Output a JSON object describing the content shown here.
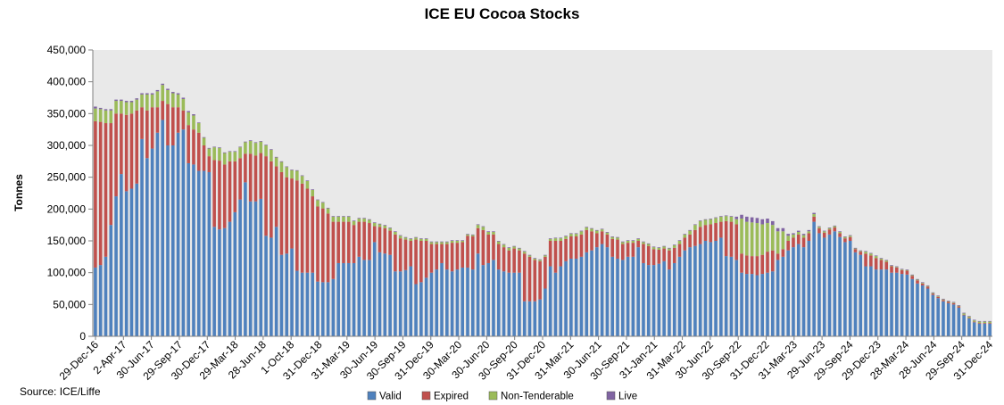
{
  "chart_data": {
    "type": "bar",
    "stacked": true,
    "title": "ICE EU Cocoa Stocks",
    "ylabel": "Tonnes",
    "xlabel": "",
    "ylim": [
      0,
      450000
    ],
    "y_ticks": [
      "0",
      "50,000",
      "100,000",
      "150,000",
      "200,000",
      "250,000",
      "300,000",
      "350,000",
      "400,000",
      "450,000"
    ],
    "x_tick_labels": [
      "29-Dec-16",
      "2-Apr-17",
      "30-Jun-17",
      "29-Sep-17",
      "30-Dec-17",
      "29-Mar-18",
      "28-Jun-18",
      "1-Oct-18",
      "31-Dec-18",
      "31-Mar-19",
      "30-Jun-19",
      "30-Sep-19",
      "31-Dec-19",
      "30-Mar-20",
      "30-Jun-20",
      "30-Sep-20",
      "31-Dec-20",
      "31-Mar-21",
      "30-Jun-21",
      "30-Sep-21",
      "31-Jan-21",
      "31-Mar-22",
      "30-Jun-22",
      "30-Sep-22",
      "31-Dec-22",
      "31-Mar-23",
      "29-Jun-23",
      "29-Sep-24",
      "29-Dec-23",
      "28-Mar-24",
      "28-Jun-24",
      "29-Sep-24",
      "31-Dec-24"
    ],
    "legend": [
      "Valid",
      "Expired",
      "Non-Tenderable",
      "Live"
    ],
    "legend_position": "bottom",
    "grid": false,
    "colors": {
      "Valid": "#4F81BD",
      "Expired": "#C0504D",
      "Non-Tenderable": "#9BBB59",
      "Live": "#8064A2",
      "background": "#E9E9E9",
      "axis": "#808080"
    },
    "series": [
      {
        "name": "Valid",
        "values": [
          108000,
          112000,
          125000,
          175000,
          220000,
          255000,
          228000,
          232000,
          240000,
          310000,
          280000,
          295000,
          320000,
          340000,
          300000,
          300000,
          320000,
          325000,
          272000,
          270000,
          260000,
          260000,
          258000,
          172000,
          168000,
          170000,
          180000,
          195000,
          215000,
          242000,
          212000,
          212000,
          216000,
          158000,
          155000,
          172000,
          128000,
          130000,
          138000,
          103000,
          100000,
          100000,
          100000,
          86000,
          85000,
          85000,
          90000,
          115000,
          115000,
          115000,
          115000,
          125000,
          120000,
          120000,
          148000,
          132000,
          130000,
          128000,
          102000,
          102000,
          104000,
          110000,
          82000,
          85000,
          92000,
          100000,
          105000,
          115000,
          105000,
          102000,
          105000,
          108000,
          108000,
          105000,
          130000,
          112000,
          115000,
          120000,
          105000,
          102000,
          100000,
          100000,
          100000,
          55000,
          55000,
          55000,
          58000,
          75000,
          110000,
          100000,
          110000,
          118000,
          122000,
          122000,
          125000,
          132000,
          135000,
          140000,
          145000,
          140000,
          125000,
          122000,
          120000,
          125000,
          125000,
          140000,
          115000,
          112000,
          112000,
          114000,
          118000,
          105000,
          115000,
          125000,
          135000,
          140000,
          142000,
          145000,
          150000,
          148000,
          150000,
          155000,
          126000,
          125000,
          120000,
          100000,
          98000,
          98000,
          96000,
          98000,
          100000,
          102000,
          120000,
          125000,
          135000,
          140000,
          145000,
          140000,
          150000,
          180000,
          162000,
          155000,
          160000,
          165000,
          156000,
          148000,
          150000,
          132000,
          128000,
          110000,
          110000,
          105000,
          105000,
          105000,
          100000,
          100000,
          98000,
          97000,
          90000,
          83000,
          80000,
          75000,
          65000,
          60000,
          55000,
          52000,
          50000,
          45000,
          33000,
          28000,
          22000,
          20000,
          20000,
          20000
        ]
      },
      {
        "name": "Expired",
        "values": [
          230000,
          225000,
          210000,
          160000,
          130000,
          95000,
          120000,
          118000,
          115000,
          50000,
          75000,
          65000,
          40000,
          30000,
          65000,
          60000,
          40000,
          30000,
          60000,
          55000,
          60000,
          40000,
          25000,
          105000,
          108000,
          100000,
          95000,
          80000,
          65000,
          45000,
          75000,
          72000,
          72000,
          125000,
          120000,
          95000,
          130000,
          120000,
          110000,
          142000,
          140000,
          132000,
          120000,
          118000,
          116000,
          108000,
          90000,
          65000,
          65000,
          65000,
          60000,
          55000,
          60000,
          58000,
          25000,
          40000,
          40000,
          38000,
          58000,
          52000,
          48000,
          40000,
          70000,
          65000,
          58000,
          45000,
          40000,
          30000,
          40000,
          45000,
          42000,
          40000,
          50000,
          52000,
          40000,
          55000,
          45000,
          40000,
          40000,
          38000,
          35000,
          38000,
          35000,
          75000,
          70000,
          65000,
          60000,
          50000,
          40000,
          50000,
          40000,
          35000,
          35000,
          35000,
          35000,
          35000,
          30000,
          22000,
          20000,
          20000,
          28000,
          30000,
          25000,
          22000,
          22000,
          10000,
          30000,
          30000,
          25000,
          22000,
          20000,
          30000,
          24000,
          20000,
          20000,
          20000,
          25000,
          27000,
          25000,
          28000,
          28000,
          25000,
          55000,
          55000,
          56000,
          30000,
          29000,
          28000,
          30000,
          30000,
          33000,
          33000,
          10000,
          12000,
          15000,
          15000,
          15000,
          15000,
          12000,
          8000,
          8000,
          8000,
          8000,
          6000,
          6000,
          6000,
          6000,
          5000,
          5000,
          20000,
          17000,
          18000,
          15000,
          12000,
          10000,
          8000,
          6000,
          6000,
          5000,
          5000,
          3000,
          3000,
          2000,
          2000,
          2000,
          2000,
          2000,
          2000,
          1000,
          1000,
          1000,
          1000,
          1000,
          1000
        ]
      },
      {
        "name": "Non-Tenderable",
        "values": [
          20000,
          20000,
          20000,
          20000,
          20000,
          20000,
          20000,
          18000,
          17000,
          20000,
          25000,
          20000,
          25000,
          25000,
          22000,
          22000,
          20000,
          18000,
          20000,
          22000,
          15000,
          12000,
          12000,
          20000,
          20000,
          18000,
          15000,
          15000,
          17000,
          18000,
          20000,
          20000,
          18000,
          17000,
          18000,
          14000,
          16000,
          16000,
          13000,
          15000,
          12000,
          12000,
          10000,
          10000,
          9000,
          8000,
          8000,
          8000,
          8000,
          8000,
          6000,
          5000,
          5000,
          5000,
          5000,
          4000,
          4000,
          4000,
          4000,
          4000,
          3000,
          3000,
          3000,
          3000,
          3000,
          3000,
          3000,
          3000,
          3000,
          3000,
          3000,
          2000,
          2000,
          2000,
          5000,
          5000,
          4000,
          4000,
          4000,
          4000,
          4000,
          3000,
          3000,
          3000,
          2000,
          2000,
          2000,
          2000,
          3000,
          4000,
          4000,
          4000,
          4000,
          4000,
          5000,
          4000,
          4000,
          4000,
          3000,
          3000,
          3000,
          3000,
          3000,
          3000,
          3000,
          3000,
          3000,
          3000,
          3000,
          3000,
          3000,
          3000,
          4000,
          5000,
          5000,
          6000,
          8000,
          9000,
          8000,
          8000,
          8000,
          8000,
          8000,
          8000,
          8000,
          55000,
          53000,
          53000,
          52000,
          48000,
          45000,
          40000,
          35000,
          28000,
          8000,
          5000,
          4000,
          4000,
          3000,
          4000,
          2000,
          2000,
          2000,
          2000,
          2000,
          2000,
          2000,
          1000,
          1000,
          3000,
          3000,
          3000,
          2000,
          2000,
          1000,
          1000,
          1000,
          1000,
          1000,
          1000,
          1000,
          1000,
          1000,
          1000,
          1000,
          1000,
          1000,
          1000,
          2000,
          2000,
          2000,
          2000,
          2000,
          2000
        ]
      },
      {
        "name": "Live",
        "values": [
          3000,
          2000,
          2000,
          2000,
          2000,
          2000,
          2000,
          2000,
          2000,
          2000,
          2000,
          2000,
          2000,
          2000,
          2000,
          2000,
          2000,
          2000,
          2000,
          2000,
          1000,
          1000,
          1000,
          1000,
          1000,
          1000,
          1000,
          1000,
          1000,
          1000,
          1000,
          1000,
          1000,
          1000,
          1000,
          1000,
          1000,
          1000,
          1000,
          1000,
          1000,
          1000,
          1000,
          1000,
          1000,
          1000,
          1000,
          1000,
          1000,
          1000,
          1000,
          1000,
          1000,
          1000,
          1000,
          1000,
          1000,
          1000,
          1000,
          1000,
          1000,
          1000,
          1000,
          1000,
          1000,
          1000,
          1000,
          1000,
          1000,
          1000,
          1000,
          1000,
          1000,
          1000,
          1000,
          1000,
          1000,
          1000,
          1000,
          1000,
          1000,
          1000,
          1000,
          1000,
          1000,
          1000,
          1000,
          1000,
          1000,
          1000,
          1000,
          1000,
          1000,
          1000,
          1000,
          1000,
          1000,
          1000,
          1000,
          1000,
          1000,
          1000,
          1000,
          1000,
          1000,
          1000,
          1000,
          1000,
          1000,
          1000,
          1000,
          1000,
          1000,
          1000,
          1000,
          1000,
          1000,
          1000,
          1000,
          1000,
          1000,
          1000,
          1000,
          1000,
          4000,
          6000,
          8000,
          8000,
          8000,
          8000,
          7000,
          6000,
          5000,
          5000,
          3000,
          2000,
          2000,
          2000,
          2000,
          2000,
          1000,
          1000,
          1000,
          1000,
          1000,
          1000,
          1000,
          1000,
          1000,
          1000,
          1000,
          1000,
          1000,
          1000,
          1000,
          1000,
          1000,
          1000,
          1000,
          1000,
          1000,
          1000,
          1000,
          1000,
          1000,
          1000,
          1000,
          1000,
          1000,
          1000,
          1000,
          1000,
          1000,
          1000,
          1000,
          1000
        ]
      }
    ]
  },
  "source": "Source: ICE/Liffe"
}
